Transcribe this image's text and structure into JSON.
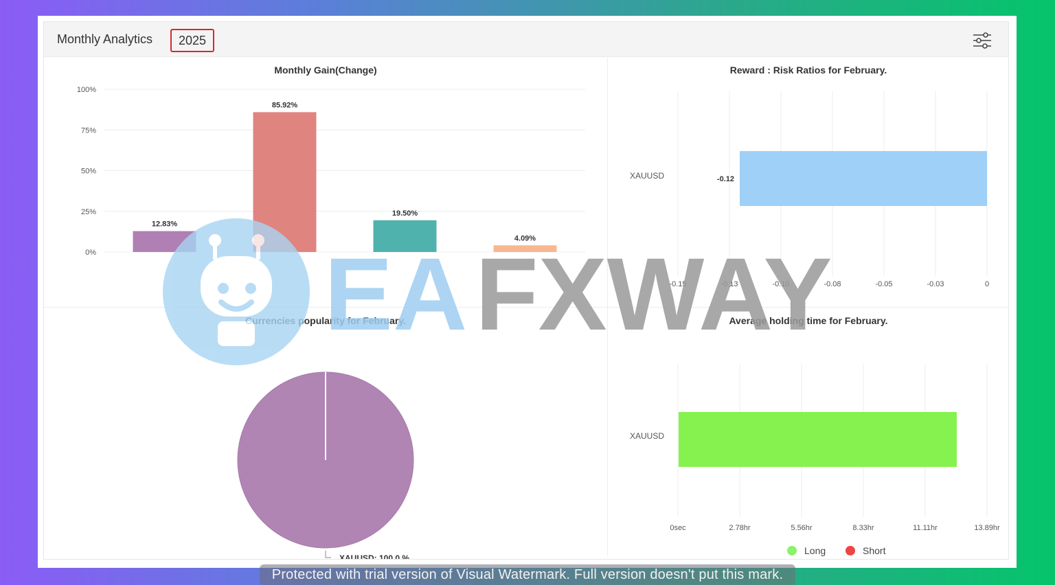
{
  "header": {
    "title": "Monthly Analytics",
    "year": "2025"
  },
  "icons": {
    "settings": "sliders-icon"
  },
  "colors": {
    "bar_purple": "#b07fb4",
    "bar_red": "#e0847f",
    "bar_teal": "#4fb2ad",
    "bar_peach": "#f8b791",
    "risk_bar": "#9fd0f7",
    "holding_bar": "#86f24f",
    "pie": "#b085b4",
    "legend_long": "#8af36a",
    "legend_short": "#ef4545"
  },
  "chart_data": [
    {
      "type": "bar",
      "title": "Monthly Gain(Change)",
      "categories": [
        "",
        "",
        "",
        ""
      ],
      "values": [
        12.83,
        85.92,
        19.5,
        4.09
      ],
      "value_labels": [
        "12.83%",
        "85.92%",
        "19.50%",
        "4.09%"
      ],
      "colors": [
        "#b07fb4",
        "#e0847f",
        "#4fb2ad",
        "#f8b791"
      ],
      "ylim": [
        0,
        100
      ],
      "yticks": [
        "0%",
        "25%",
        "50%",
        "75%",
        "100%"
      ],
      "grid": true
    },
    {
      "type": "bar",
      "orientation": "horizontal",
      "title": "Reward : Risk Ratios for February.",
      "categories": [
        "XAUUSD"
      ],
      "values": [
        -0.12
      ],
      "value_labels": [
        "-0.12"
      ],
      "xlim": [
        -0.15,
        0
      ],
      "xticks": [
        "-0.15",
        "-0.13",
        "-0.10",
        "-0.08",
        "-0.05",
        "-0.03",
        "0"
      ],
      "grid": true
    },
    {
      "type": "pie",
      "title": "Currencies popularity for February.",
      "labels": [
        "XAUUSD"
      ],
      "values": [
        100.0
      ],
      "slice_labels": [
        "XAUUSD: 100.0 %"
      ]
    },
    {
      "type": "bar",
      "orientation": "horizontal",
      "title": "Average holding time for February.",
      "categories": [
        "XAUUSD"
      ],
      "series": [
        {
          "name": "Long",
          "values": [
            12.5
          ]
        },
        {
          "name": "Short",
          "values": [
            0
          ]
        }
      ],
      "x_unit": "hr",
      "xlim": [
        0,
        13.89
      ],
      "xticks": [
        "0sec",
        "2.78hr",
        "5.56hr",
        "8.33hr",
        "11.11hr",
        "13.89hr"
      ],
      "legend": [
        "Long",
        "Short"
      ],
      "legend_position": "bottom",
      "grid": true
    }
  ],
  "watermark": {
    "text_a": "EA",
    "text_b": "FXWAY",
    "footer": "Protected with trial version of Visual Watermark. Full version doesn't put this mark."
  }
}
